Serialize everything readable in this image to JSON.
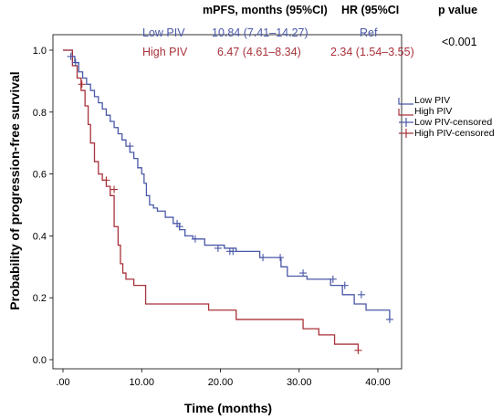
{
  "table": {
    "headers": [
      "mPFS, months (95%CI)",
      "HR (95%CI",
      "p value"
    ],
    "rows": [
      {
        "group": "Low PIV",
        "mpfs": "10.84 (7.41–14.27)",
        "hr": "Ref"
      },
      {
        "group": "High PIV",
        "mpfs": "6.47 (4.61–8.34)",
        "hr": "2.34 (1.54–3.55)"
      }
    ],
    "p_value": "<0.001"
  },
  "colors": {
    "low": "#4a58a8",
    "high": "#a8323a"
  },
  "chart_data": {
    "type": "line",
    "step": true,
    "xlabel": "Time (months)",
    "ylabel": "Probability of progression-free survival",
    "xlim": [
      0,
      42
    ],
    "ylim": [
      0,
      1.05
    ],
    "x_ticks": [
      0,
      10,
      20,
      30,
      40
    ],
    "x_tick_labels": [
      ".00",
      "10.00",
      "20.00",
      "30.00",
      "40.00"
    ],
    "y_ticks": [
      0,
      0.2,
      0.4,
      0.6,
      0.8,
      1.0
    ],
    "y_tick_labels": [
      "0.0",
      "0.2",
      "0.4",
      "0.6",
      "0.8",
      "1.0"
    ],
    "legend": [
      "Low PIV",
      "High PIV",
      "Low PIV-censored",
      "High PIV-censored"
    ],
    "legend_position": "right",
    "series": [
      {
        "name": "Low PIV",
        "x": [
          0,
          1.2,
          1.5,
          2.0,
          2.5,
          3.0,
          3.5,
          4.0,
          4.5,
          5.0,
          5.5,
          6.0,
          6.5,
          7.0,
          7.5,
          8.0,
          8.5,
          9.0,
          9.5,
          10.0,
          10.3,
          10.6,
          11.0,
          11.5,
          12.0,
          13.0,
          14.0,
          14.8,
          15.5,
          16.5,
          18.0,
          20.5,
          22.0,
          25.0,
          27.7,
          28.5,
          31.0,
          34.0,
          35.5,
          37.0,
          38.5,
          41.5
        ],
        "y": [
          1.0,
          0.98,
          0.96,
          0.93,
          0.91,
          0.89,
          0.87,
          0.85,
          0.83,
          0.81,
          0.79,
          0.77,
          0.75,
          0.73,
          0.71,
          0.69,
          0.67,
          0.65,
          0.62,
          0.6,
          0.57,
          0.53,
          0.5,
          0.49,
          0.48,
          0.46,
          0.44,
          0.42,
          0.4,
          0.39,
          0.37,
          0.36,
          0.35,
          0.33,
          0.3,
          0.27,
          0.26,
          0.24,
          0.21,
          0.18,
          0.16,
          0.13
        ]
      },
      {
        "name": "High PIV",
        "x": [
          0,
          1.2,
          1.8,
          2.3,
          2.8,
          3.2,
          3.5,
          4.0,
          4.5,
          5.0,
          5.5,
          6.0,
          6.5,
          7.0,
          7.3,
          7.6,
          8.0,
          9.0,
          10.5,
          18.5,
          22.0,
          30.5,
          32.5,
          34.5,
          37.5
        ],
        "y": [
          1.0,
          0.95,
          0.91,
          0.87,
          0.82,
          0.76,
          0.7,
          0.64,
          0.6,
          0.58,
          0.56,
          0.53,
          0.43,
          0.37,
          0.31,
          0.28,
          0.26,
          0.24,
          0.18,
          0.16,
          0.13,
          0.1,
          0.08,
          0.05,
          0.03
        ]
      }
    ],
    "censored": [
      {
        "series": "Low PIV",
        "x": [
          1.0,
          1.6,
          8.5,
          14.5,
          14.8,
          16.8,
          19.7,
          21.2,
          21.6,
          25.4,
          27.6,
          30.5,
          34.3,
          35.8,
          37.9,
          41.5
        ],
        "y": [
          0.98,
          0.96,
          0.69,
          0.44,
          0.43,
          0.39,
          0.36,
          0.35,
          0.35,
          0.33,
          0.33,
          0.28,
          0.26,
          0.24,
          0.21,
          0.13
        ]
      },
      {
        "series": "High PIV",
        "x": [
          2.4,
          5.5,
          6.5,
          37.5
        ],
        "y": [
          0.89,
          0.58,
          0.55,
          0.03
        ]
      }
    ]
  }
}
